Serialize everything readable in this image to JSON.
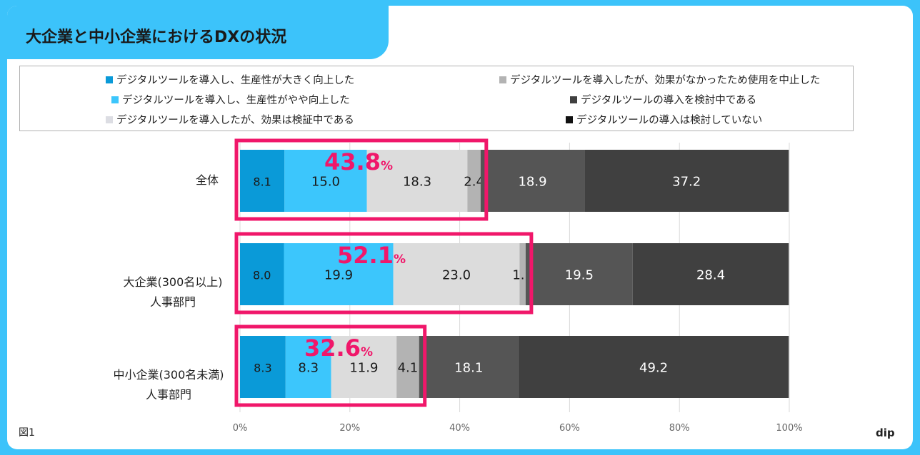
{
  "title": "大企業と中小企業におけるDXの状況",
  "figure_label": "図1",
  "brand": "dip",
  "colors": {
    "frame": "#3cc3fa",
    "highlight": "#f0176a"
  },
  "chart_data": {
    "type": "bar",
    "orientation": "horizontal",
    "stacked": true,
    "categories": [
      "全体",
      "大企業(300名以上)\n人事部門",
      "中小企業(300名未満)\n人事部門"
    ],
    "xlim": [
      0,
      100
    ],
    "x_ticks": [
      "0%",
      "20%",
      "40%",
      "60%",
      "80%",
      "100%"
    ],
    "grid": true,
    "legend_position": "top",
    "series": [
      {
        "name": "デジタルツールを導入し、生産性が大きく向上した",
        "color": "#0a9ad8",
        "label_color": "#1a1a1a",
        "values": [
          8.1,
          8.0,
          8.3
        ]
      },
      {
        "name": "デジタルツールを導入し、生産性がやや向上した",
        "color": "#3cc6fc",
        "label_color": "#1a1a1a",
        "values": [
          15.0,
          19.9,
          8.3
        ]
      },
      {
        "name": "デジタルツールを導入したが、効果は検証中である",
        "color": "#dcdcdc",
        "label_color": "#1a1a1a",
        "values": [
          18.3,
          23.0,
          11.9
        ]
      },
      {
        "name": "デジタルツールを導入したが、効果がなかったため使用を中止した",
        "color": "#b3b3b3",
        "label_color": "#1a1a1a",
        "values": [
          2.4,
          1.1,
          4.1
        ]
      },
      {
        "name": "デジタルツールの導入を検討中である",
        "color": "#555555",
        "label_color": "#ffffff",
        "values": [
          18.9,
          19.5,
          18.1
        ]
      },
      {
        "name": "デジタルツールの導入は検討していない",
        "color": "#404040",
        "label_color": "#ffffff",
        "values": [
          37.2,
          28.4,
          49.2
        ]
      }
    ],
    "annotations": [
      {
        "category": "全体",
        "value": "43.8",
        "unit": "%"
      },
      {
        "category": "大企業(300名以上)\n人事部門",
        "value": "52.1",
        "unit": "%"
      },
      {
        "category": "中小企業(300名未満)\n人事部門",
        "value": "32.6",
        "unit": "%"
      }
    ]
  }
}
